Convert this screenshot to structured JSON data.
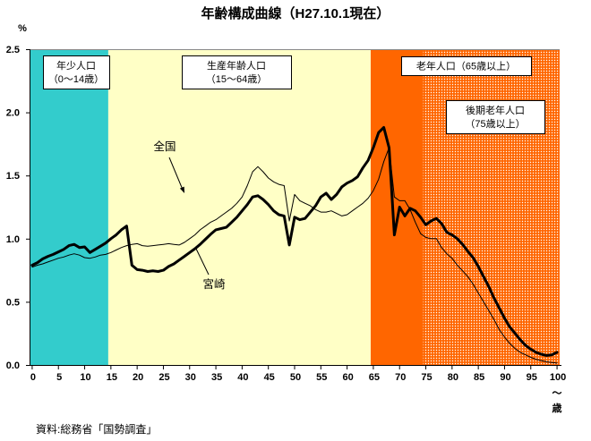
{
  "title": "年齢構成曲線（H27.10.1現在）",
  "source_note": "資料:総務省「国勢調査」",
  "y_axis": {
    "unit_label": "%",
    "ticks": [
      "0.0",
      "0.5",
      "1.0",
      "1.5",
      "2.0",
      "2.5"
    ],
    "min": 0,
    "max": 2.5
  },
  "x_axis": {
    "ticks": [
      0,
      5,
      10,
      15,
      20,
      25,
      30,
      35,
      40,
      45,
      50,
      55,
      60,
      65,
      70,
      75,
      80,
      85,
      90,
      95,
      100
    ],
    "suffix_lines": [
      "～",
      "歳"
    ]
  },
  "colors": {
    "axis": "#000000",
    "plot_top_border": "#888888",
    "line": "#000000",
    "label_box_bg": "#FFFFFF",
    "label_box_border": "#000000",
    "pattern_dot": "#FFFFFF"
  },
  "zones": [
    {
      "id": "young",
      "label_lines": [
        "年少人口",
        "（0～14歳）"
      ],
      "age_range": [
        0,
        15
      ],
      "color": "#33CCCC",
      "pattern": false
    },
    {
      "id": "working-age",
      "label_lines": [
        "生産年齢人口",
        "（15～64歳）"
      ],
      "age_range": [
        15,
        65
      ],
      "color": "#FFFFC6",
      "pattern": false
    },
    {
      "id": "elderly",
      "label_lines": [
        "老年人口（65歳以上）"
      ],
      "age_range": [
        65,
        101
      ],
      "color": "#FF6600",
      "pattern": false
    },
    {
      "id": "late-elderly",
      "label_lines": [
        "後期老年人口",
        "（75歳以上）"
      ],
      "age_range": [
        75,
        101
      ],
      "color": "#FF6600",
      "pattern": true
    }
  ],
  "chart_data": {
    "type": "line",
    "title": "年齢構成曲線（H27.10.1現在）",
    "ylabel": "%",
    "xlabel": "歳",
    "ylim": [
      0,
      2.5
    ],
    "x": [
      0,
      1,
      2,
      3,
      4,
      5,
      6,
      7,
      8,
      9,
      10,
      11,
      12,
      13,
      14,
      15,
      16,
      17,
      18,
      19,
      20,
      21,
      22,
      23,
      24,
      25,
      26,
      27,
      28,
      29,
      30,
      31,
      32,
      33,
      34,
      35,
      36,
      37,
      38,
      39,
      40,
      41,
      42,
      43,
      44,
      45,
      46,
      47,
      48,
      49,
      50,
      51,
      52,
      53,
      54,
      55,
      56,
      57,
      58,
      59,
      60,
      61,
      62,
      63,
      64,
      65,
      66,
      67,
      68,
      69,
      70,
      71,
      72,
      73,
      74,
      75,
      76,
      77,
      78,
      79,
      80,
      81,
      82,
      83,
      84,
      85,
      86,
      87,
      88,
      89,
      90,
      91,
      92,
      93,
      94,
      95,
      96,
      97,
      98,
      99,
      100
    ],
    "series": [
      {
        "name": "全国",
        "style": "thin",
        "values": [
          0.775,
          0.79,
          0.8,
          0.815,
          0.83,
          0.845,
          0.855,
          0.87,
          0.88,
          0.87,
          0.85,
          0.845,
          0.855,
          0.87,
          0.875,
          0.89,
          0.91,
          0.93,
          0.945,
          0.955,
          0.96,
          0.945,
          0.94,
          0.945,
          0.95,
          0.955,
          0.96,
          0.955,
          0.95,
          0.97,
          1.0,
          1.03,
          1.07,
          1.1,
          1.13,
          1.15,
          1.18,
          1.21,
          1.24,
          1.28,
          1.33,
          1.42,
          1.53,
          1.57,
          1.53,
          1.48,
          1.45,
          1.43,
          1.42,
          1.14,
          1.35,
          1.3,
          1.28,
          1.26,
          1.23,
          1.21,
          1.21,
          1.22,
          1.2,
          1.18,
          1.19,
          1.22,
          1.25,
          1.28,
          1.32,
          1.38,
          1.47,
          1.61,
          1.72,
          1.33,
          1.3,
          1.3,
          1.23,
          1.13,
          1.04,
          1.01,
          1.0,
          1.0,
          0.93,
          0.88,
          0.845,
          0.79,
          0.745,
          0.7,
          0.64,
          0.57,
          0.5,
          0.43,
          0.36,
          0.28,
          0.22,
          0.17,
          0.13,
          0.1,
          0.08,
          0.06,
          0.045,
          0.035,
          0.025,
          0.02,
          0.015
        ]
      },
      {
        "name": "宮崎",
        "style": "thick",
        "values": [
          0.79,
          0.81,
          0.84,
          0.86,
          0.875,
          0.895,
          0.915,
          0.945,
          0.955,
          0.93,
          0.935,
          0.89,
          0.915,
          0.94,
          0.965,
          1.0,
          1.03,
          1.07,
          1.1,
          0.79,
          0.755,
          0.75,
          0.74,
          0.745,
          0.74,
          0.75,
          0.78,
          0.8,
          0.83,
          0.86,
          0.89,
          0.92,
          0.955,
          0.995,
          1.035,
          1.07,
          1.08,
          1.09,
          1.13,
          1.17,
          1.22,
          1.27,
          1.33,
          1.34,
          1.31,
          1.27,
          1.22,
          1.19,
          1.18,
          0.95,
          1.17,
          1.15,
          1.16,
          1.21,
          1.26,
          1.33,
          1.36,
          1.31,
          1.35,
          1.41,
          1.44,
          1.46,
          1.49,
          1.56,
          1.62,
          1.72,
          1.84,
          1.88,
          1.72,
          1.03,
          1.25,
          1.18,
          1.24,
          1.22,
          1.17,
          1.11,
          1.14,
          1.16,
          1.12,
          1.05,
          1.03,
          1.0,
          0.955,
          0.9,
          0.85,
          0.78,
          0.7,
          0.62,
          0.53,
          0.45,
          0.37,
          0.3,
          0.25,
          0.2,
          0.155,
          0.125,
          0.1,
          0.085,
          0.075,
          0.08,
          0.1
        ]
      }
    ]
  }
}
